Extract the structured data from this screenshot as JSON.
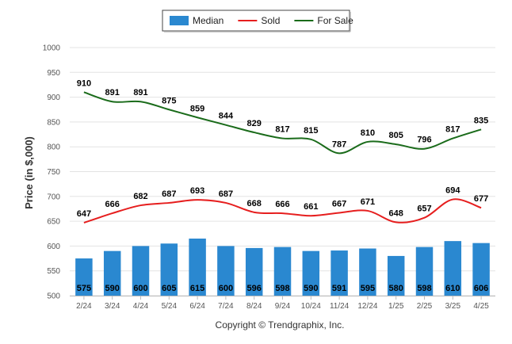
{
  "chart_data": {
    "type": "bar",
    "categories": [
      "2/24",
      "3/24",
      "4/24",
      "5/24",
      "6/24",
      "7/24",
      "8/24",
      "9/24",
      "10/24",
      "11/24",
      "12/24",
      "1/25",
      "2/25",
      "3/25",
      "4/25"
    ],
    "series": [
      {
        "name": "Median",
        "type": "bar",
        "color": "#2a88d0",
        "values": [
          575,
          590,
          600,
          605,
          615,
          600,
          596,
          598,
          590,
          591,
          595,
          580,
          598,
          610,
          606
        ]
      },
      {
        "name": "Sold",
        "type": "line",
        "color": "#e61e1e",
        "values": [
          647,
          666,
          682,
          687,
          693,
          687,
          668,
          666,
          661,
          667,
          671,
          648,
          657,
          694,
          677
        ]
      },
      {
        "name": "For Sale",
        "type": "line",
        "color": "#1a6b1a",
        "values": [
          910,
          891,
          891,
          875,
          859,
          844,
          829,
          817,
          815,
          787,
          810,
          805,
          796,
          817,
          835
        ]
      }
    ],
    "ylabel": "Price (in $,000)",
    "xlabel": "",
    "ylim": [
      500,
      1000
    ],
    "yticks": [
      500,
      550,
      600,
      650,
      700,
      750,
      800,
      850,
      900,
      950,
      1000
    ],
    "grid": true,
    "legend_position": "top-center",
    "copyright": "Copyright © Trendgraphix, Inc."
  }
}
